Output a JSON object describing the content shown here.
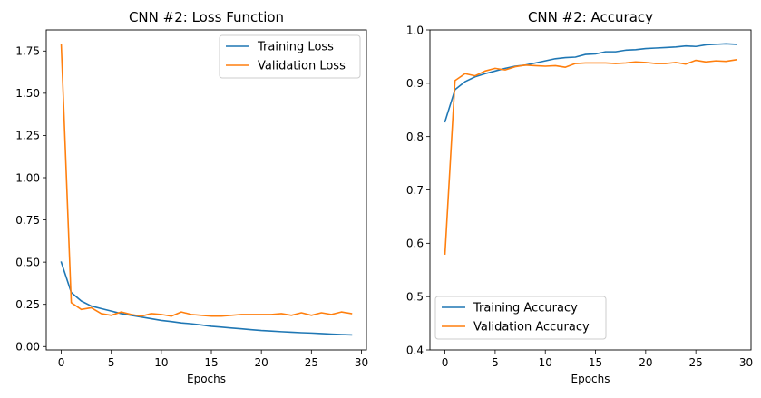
{
  "colors": {
    "training": "#1f77b4",
    "validation": "#ff7f0e",
    "axis": "#000000",
    "legend_border": "#cccccc"
  },
  "chart_data": [
    {
      "type": "line",
      "title": "CNN #2: Loss Function",
      "xlabel": "Epochs",
      "ylabel": "",
      "xlim": [
        -1.5,
        30.5
      ],
      "ylim": [
        -0.02,
        1.875
      ],
      "xticks": [
        0,
        5,
        10,
        15,
        20,
        25,
        30
      ],
      "xtick_labels": [
        "0",
        "5",
        "10",
        "15",
        "20",
        "25",
        "30"
      ],
      "yticks": [
        0.0,
        0.25,
        0.5,
        0.75,
        1.0,
        1.25,
        1.5,
        1.75
      ],
      "ytick_labels": [
        "0.00",
        "0.25",
        "0.50",
        "0.75",
        "1.00",
        "1.25",
        "1.50",
        "1.75"
      ],
      "grid": false,
      "legend_position": "top-right",
      "x": [
        0,
        1,
        2,
        3,
        4,
        5,
        6,
        7,
        8,
        9,
        10,
        11,
        12,
        13,
        14,
        15,
        16,
        17,
        18,
        19,
        20,
        21,
        22,
        23,
        24,
        25,
        26,
        27,
        28,
        29
      ],
      "series": [
        {
          "name": "Training Loss",
          "color": "#1f77b4",
          "values": [
            0.5,
            0.32,
            0.27,
            0.24,
            0.225,
            0.21,
            0.195,
            0.185,
            0.175,
            0.165,
            0.155,
            0.148,
            0.14,
            0.135,
            0.128,
            0.12,
            0.115,
            0.11,
            0.105,
            0.1,
            0.095,
            0.092,
            0.088,
            0.085,
            0.082,
            0.08,
            0.077,
            0.074,
            0.071,
            0.069
          ]
        },
        {
          "name": "Validation Loss",
          "color": "#ff7f0e",
          "values": [
            1.79,
            0.26,
            0.22,
            0.23,
            0.195,
            0.185,
            0.205,
            0.19,
            0.18,
            0.195,
            0.19,
            0.18,
            0.205,
            0.19,
            0.185,
            0.18,
            0.18,
            0.185,
            0.19,
            0.19,
            0.19,
            0.19,
            0.195,
            0.185,
            0.2,
            0.185,
            0.2,
            0.19,
            0.205,
            0.195
          ]
        }
      ]
    },
    {
      "type": "line",
      "title": "CNN #2: Accuracy",
      "xlabel": "Epochs",
      "ylabel": "",
      "xlim": [
        -1.5,
        30.5
      ],
      "ylim": [
        0.4,
        1.0
      ],
      "xticks": [
        0,
        5,
        10,
        15,
        20,
        25,
        30
      ],
      "xtick_labels": [
        "0",
        "5",
        "10",
        "15",
        "20",
        "25",
        "30"
      ],
      "yticks": [
        0.4,
        0.5,
        0.6,
        0.7,
        0.8,
        0.9,
        1.0
      ],
      "ytick_labels": [
        "0.4",
        "0.5",
        "0.6",
        "0.7",
        "0.8",
        "0.9",
        "1.0"
      ],
      "grid": false,
      "legend_position": "bottom-left",
      "x": [
        0,
        1,
        2,
        3,
        4,
        5,
        6,
        7,
        8,
        9,
        10,
        11,
        12,
        13,
        14,
        15,
        16,
        17,
        18,
        19,
        20,
        21,
        22,
        23,
        24,
        25,
        26,
        27,
        28,
        29
      ],
      "series": [
        {
          "name": "Training Accuracy",
          "color": "#1f77b4",
          "values": [
            0.828,
            0.888,
            0.903,
            0.912,
            0.918,
            0.923,
            0.928,
            0.932,
            0.934,
            0.938,
            0.942,
            0.946,
            0.948,
            0.949,
            0.954,
            0.955,
            0.959,
            0.959,
            0.962,
            0.963,
            0.965,
            0.966,
            0.967,
            0.968,
            0.97,
            0.969,
            0.972,
            0.973,
            0.974,
            0.973
          ]
        },
        {
          "name": "Validation Accuracy",
          "color": "#ff7f0e",
          "values": [
            0.58,
            0.905,
            0.918,
            0.914,
            0.923,
            0.928,
            0.925,
            0.931,
            0.934,
            0.933,
            0.932,
            0.933,
            0.93,
            0.937,
            0.938,
            0.938,
            0.938,
            0.937,
            0.938,
            0.94,
            0.939,
            0.937,
            0.937,
            0.939,
            0.936,
            0.943,
            0.94,
            0.942,
            0.941,
            0.944
          ]
        }
      ]
    }
  ]
}
